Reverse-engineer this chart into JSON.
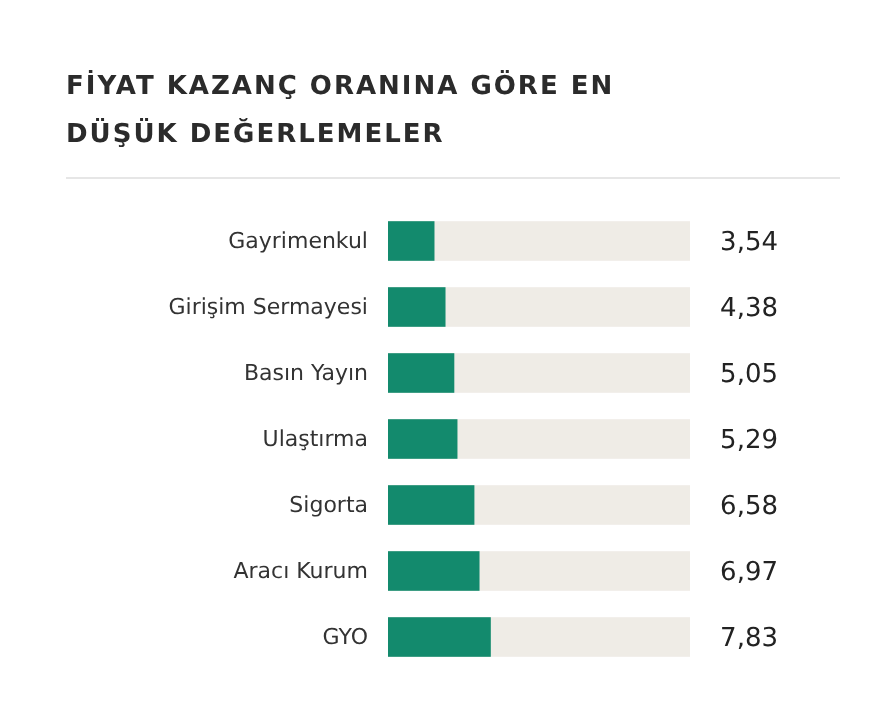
{
  "chart_data": {
    "type": "bar",
    "orientation": "horizontal",
    "title": "FİYAT KAZANÇ ORANINA GÖRE EN DÜŞÜK DEĞERLEMELER",
    "categories": [
      "Gayrimenkul",
      "Girişim Sermayesi",
      "Basın Yayın",
      "Ulaştırma",
      "Sigorta",
      "Aracı Kurum",
      "GYO"
    ],
    "values": [
      3.54,
      4.38,
      5.05,
      5.29,
      6.58,
      6.97,
      7.83
    ],
    "value_labels": [
      "3,54",
      "4,38",
      "5,05",
      "5,29",
      "6,58",
      "6,97",
      "7,83"
    ],
    "color": "#138a6d",
    "xlim": [
      0,
      23
    ],
    "tick_labels": "y"
  }
}
